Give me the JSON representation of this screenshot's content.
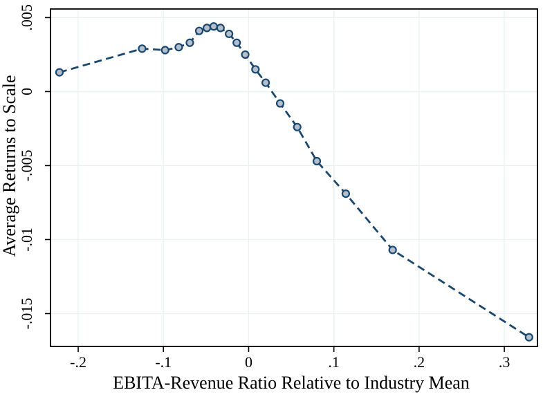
{
  "page": {
    "background": "#ffffff"
  },
  "chart_data": {
    "type": "scatter",
    "title": "",
    "xlabel": "EBITA-Revenue Ratio Relative to Industry Mean",
    "ylabel": "Average Returns to Scale",
    "xlim": [
      -0.2325,
      0.3389
    ],
    "ylim": [
      -0.01722,
      0.00558
    ],
    "grid": true,
    "legend": "none",
    "x_ticks": [
      {
        "value": -0.2,
        "label": "-.2"
      },
      {
        "value": -0.1,
        "label": "-.1"
      },
      {
        "value": 0,
        "label": "0"
      },
      {
        "value": 0.1,
        "label": ".1"
      },
      {
        "value": 0.2,
        "label": ".2"
      },
      {
        "value": 0.3,
        "label": ".3"
      }
    ],
    "y_ticks": [
      {
        "value": 0.005,
        "label": ".005"
      },
      {
        "value": 0,
        "label": "0"
      },
      {
        "value": -0.005,
        "label": "-.005"
      },
      {
        "value": -0.01,
        "label": "-.01"
      },
      {
        "value": -0.015,
        "label": "-.015"
      }
    ],
    "series": [
      {
        "name": "binned-average-returns-to-scale",
        "type": "line+scatter",
        "line_style": "dashed",
        "marker": "circle",
        "points": [
          [
            -0.222,
            0.0013
          ],
          [
            -0.125,
            0.0029
          ],
          [
            -0.098,
            0.0028
          ],
          [
            -0.082,
            0.003
          ],
          [
            -0.069,
            0.0033
          ],
          [
            -0.058,
            0.0041
          ],
          [
            -0.049,
            0.0043
          ],
          [
            -0.041,
            0.0044
          ],
          [
            -0.033,
            0.0043
          ],
          [
            -0.023,
            0.0039
          ],
          [
            -0.014,
            0.0033
          ],
          [
            -0.004,
            0.0025
          ],
          [
            0.008,
            0.0015
          ],
          [
            0.02,
            0.0006
          ],
          [
            0.037,
            -0.0008
          ],
          [
            0.057,
            -0.0024
          ],
          [
            0.08,
            -0.0047
          ],
          [
            0.114,
            -0.0069
          ],
          [
            0.169,
            -0.0107
          ],
          [
            0.329,
            -0.0166
          ]
        ]
      }
    ],
    "style": {
      "line_color": "#1a476f",
      "marker_fill": "#b3bfcc",
      "marker_edge": "#1a476f",
      "grid_color": "#e9f1f3",
      "axis_color": "#000000",
      "text_color": "#000000",
      "background": "#ffffff"
    }
  }
}
